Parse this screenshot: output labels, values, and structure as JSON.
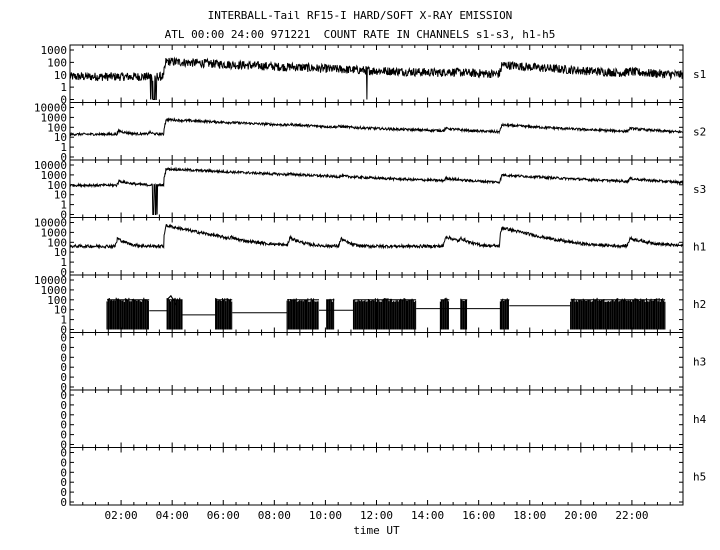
{
  "title": "INTERBALL-Tail RF15-I HARD/SOFT X-RAY EMISSION",
  "subtitle": "ATL 00:00 24:00 971221  COUNT RATE IN CHANNELS s1-s3, h1-h5",
  "chart_data": {
    "type": "line",
    "xlabel": "time UT",
    "xlim": [
      0,
      24
    ],
    "x_tick_labels": [
      "02:00",
      "04:00",
      "06:00",
      "08:00",
      "10:00",
      "12:00",
      "14:00",
      "16:00",
      "18:00",
      "20:00",
      "22:00"
    ],
    "x_tick_values": [
      2,
      4,
      6,
      8,
      10,
      12,
      14,
      16,
      18,
      20,
      22
    ],
    "y_scale": "log",
    "grid": false,
    "panels": [
      {
        "name": "s1",
        "y_tick_labels": [
          "1000",
          "100",
          "10",
          "1",
          "0"
        ],
        "baseline": 7,
        "noise_decades": 0.35,
        "events": [
          {
            "t": 3.75,
            "peak": 120,
            "decay_h": 4.0
          },
          {
            "t": 8.6,
            "peak": 12,
            "decay_h": 0.5
          },
          {
            "t": 14.7,
            "peak": 12,
            "decay_h": 0.6
          },
          {
            "t": 16.9,
            "peak": 60,
            "decay_h": 2.2
          },
          {
            "t": 21.8,
            "peak": 12,
            "decay_h": 0.8
          }
        ],
        "dropouts": [
          {
            "start": 3.15,
            "end": 3.45,
            "value": 0
          },
          {
            "start": 11.6,
            "end": 11.7,
            "value": 0
          }
        ]
      },
      {
        "name": "s2",
        "y_tick_labels": [
          "10000",
          "1000",
          "100",
          "10",
          "1",
          "0"
        ],
        "baseline": 20,
        "noise_decades": 0.12,
        "events": [
          {
            "t": 1.9,
            "peak": 45,
            "decay_h": 0.3
          },
          {
            "t": 3.1,
            "peak": 35,
            "decay_h": 0.1
          },
          {
            "t": 3.75,
            "peak": 600,
            "decay_h": 3.5
          },
          {
            "t": 8.6,
            "peak": 50,
            "decay_h": 0.6
          },
          {
            "t": 10.5,
            "peak": 40,
            "decay_h": 0.4
          },
          {
            "t": 14.7,
            "peak": 55,
            "decay_h": 0.6
          },
          {
            "t": 16.9,
            "peak": 160,
            "decay_h": 2.3
          },
          {
            "t": 21.9,
            "peak": 60,
            "decay_h": 1.0
          }
        ],
        "dropouts": []
      },
      {
        "name": "s3",
        "y_tick_labels": [
          "10000",
          "1000",
          "100",
          "10",
          "1",
          "0"
        ],
        "baseline": 90,
        "noise_decades": 0.12,
        "events": [
          {
            "t": 1.9,
            "peak": 250,
            "decay_h": 0.4
          },
          {
            "t": 3.75,
            "peak": 4000,
            "decay_h": 3.5
          },
          {
            "t": 8.6,
            "peak": 250,
            "decay_h": 0.6
          },
          {
            "t": 10.6,
            "peak": 220,
            "decay_h": 0.6
          },
          {
            "t": 14.7,
            "peak": 300,
            "decay_h": 0.6
          },
          {
            "t": 16.9,
            "peak": 900,
            "decay_h": 2.5
          },
          {
            "t": 21.9,
            "peak": 300,
            "decay_h": 1.0
          }
        ],
        "dropouts": [
          {
            "start": 3.2,
            "end": 3.45,
            "value": 0
          }
        ]
      },
      {
        "name": "h1",
        "y_tick_labels": [
          "10000",
          "1000",
          "100",
          "10",
          "1",
          "0"
        ],
        "baseline": 40,
        "noise_decades": 0.15,
        "events": [
          {
            "t": 1.85,
            "peak": 250,
            "decay_h": 0.25
          },
          {
            "t": 3.75,
            "peak": 5000,
            "decay_h": 0.8
          },
          {
            "t": 6.3,
            "peak": 150,
            "decay_h": 0.1
          },
          {
            "t": 8.6,
            "peak": 300,
            "decay_h": 0.3
          },
          {
            "t": 10.6,
            "peak": 250,
            "decay_h": 0.2
          },
          {
            "t": 14.7,
            "peak": 400,
            "decay_h": 0.4
          },
          {
            "t": 15.3,
            "peak": 200,
            "decay_h": 0.2
          },
          {
            "t": 16.9,
            "peak": 3000,
            "decay_h": 0.7
          },
          {
            "t": 21.9,
            "peak": 250,
            "decay_h": 0.6
          }
        ],
        "dropouts": []
      },
      {
        "name": "h2",
        "y_tick_labels": [
          "10000",
          "1000",
          "100",
          "10",
          "1",
          "0"
        ],
        "type": "sporadic",
        "bursts": [
          [
            1.45,
            3.1
          ],
          [
            3.8,
            4.4
          ],
          [
            5.7,
            6.35
          ],
          [
            8.5,
            9.75
          ],
          [
            10.05,
            10.35
          ],
          [
            11.1,
            13.55
          ],
          [
            14.5,
            14.85
          ],
          [
            15.3,
            15.55
          ],
          [
            16.85,
            17.2
          ],
          [
            19.6,
            23.3
          ]
        ],
        "burst_level": 100,
        "quiet_levels": [
          [
            3.1,
            3.8,
            8
          ],
          [
            4.4,
            5.7,
            3
          ],
          [
            6.35,
            8.5,
            5
          ],
          [
            9.75,
            11.1,
            9
          ],
          [
            13.55,
            16.85,
            13
          ],
          [
            17.2,
            19.6,
            25
          ]
        ],
        "events": [
          {
            "t": 3.95,
            "peak": 250
          }
        ]
      },
      {
        "name": "h3",
        "y_tick_labels": [
          "0",
          "0",
          "0",
          "0",
          "0",
          "0"
        ],
        "type": "empty"
      },
      {
        "name": "h4",
        "y_tick_labels": [
          "0",
          "0",
          "0",
          "0",
          "0",
          "0"
        ],
        "type": "empty"
      },
      {
        "name": "h5",
        "y_tick_labels": [
          "0",
          "0",
          "0",
          "0",
          "0",
          "0"
        ],
        "type": "empty"
      }
    ]
  }
}
